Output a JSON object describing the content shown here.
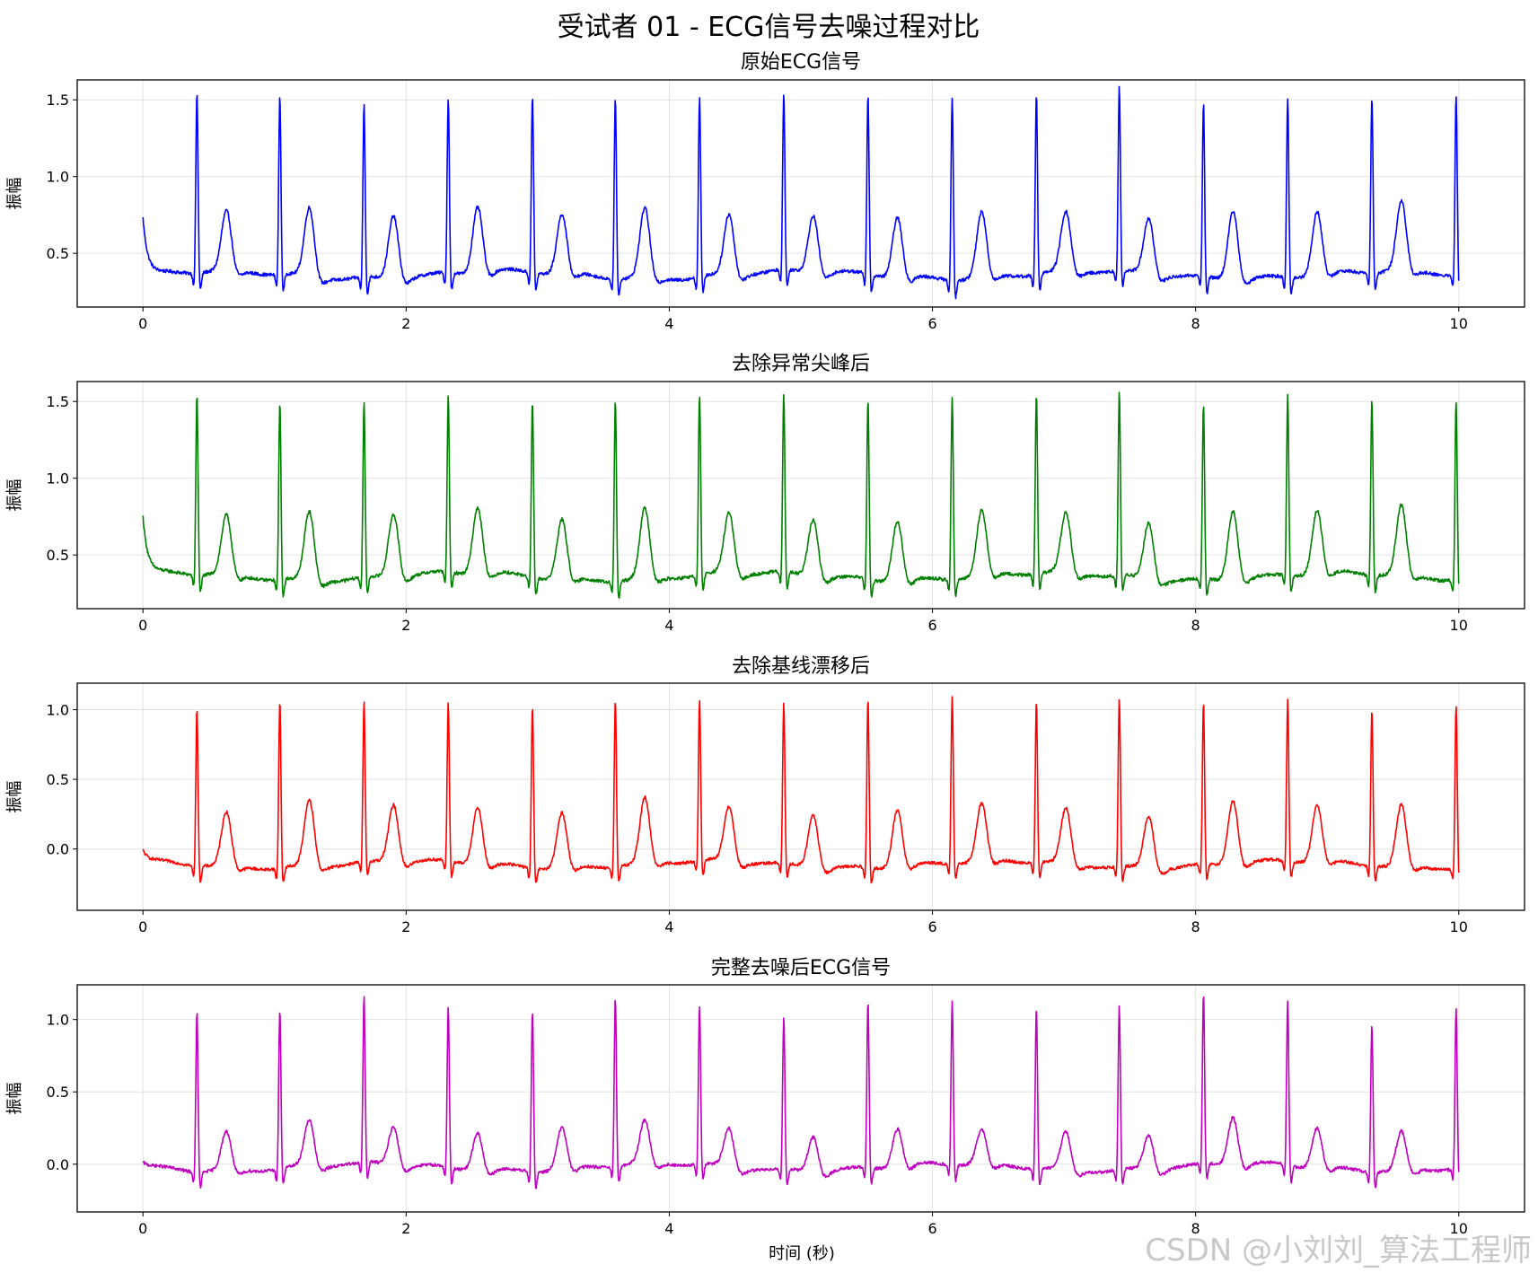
{
  "chart_data": {
    "type": "line",
    "title": "受试者 01 - ECG信号去噪过程对比",
    "xlabel": "时间 (秒)",
    "x_ticks": [
      "0",
      "2",
      "4",
      "6",
      "8",
      "10"
    ],
    "x_range": [
      -0.5,
      10.5
    ],
    "grid": true,
    "watermark": "CSDN @小刘刘_算法工程师",
    "beat_times": [
      0.41,
      1.04,
      1.68,
      2.32,
      2.96,
      3.59,
      4.23,
      4.87,
      5.51,
      6.15,
      6.79,
      7.42,
      8.06,
      8.7,
      9.34,
      9.98
    ],
    "panels": [
      {
        "title": "原始ECG信号",
        "ylabel": "振幅",
        "color": "#0000ff",
        "y_ticks": [
          "0.5",
          "1.0",
          "1.5"
        ],
        "y_tick_values": [
          0.5,
          1.0,
          1.5
        ],
        "y_range": [
          0.15,
          1.63
        ],
        "baseline_start": 0.73,
        "baseline": 0.36,
        "r_peaks": [
          1.55,
          1.53,
          1.5,
          1.51,
          1.52,
          1.55,
          1.54,
          1.52,
          1.53,
          1.56,
          1.54,
          1.57,
          1.5,
          1.54,
          1.52,
          1.53
        ],
        "t_peaks": [
          0.75,
          0.81,
          0.78,
          0.8,
          0.75,
          0.82,
          0.76,
          0.74,
          0.76,
          0.79,
          0.75,
          0.73,
          0.82,
          0.78,
          0.82,
          0.79
        ]
      },
      {
        "title": "去除异常尖峰后",
        "ylabel": "振幅",
        "color": "#008000",
        "y_ticks": [
          "0.5",
          "1.0",
          "1.5"
        ],
        "y_tick_values": [
          0.5,
          1.0,
          1.5
        ],
        "y_range": [
          0.15,
          1.63
        ],
        "baseline_start": 0.73,
        "baseline": 0.36,
        "r_peaks": [
          1.55,
          1.53,
          1.5,
          1.51,
          1.52,
          1.55,
          1.54,
          1.52,
          1.53,
          1.56,
          1.54,
          1.57,
          1.5,
          1.54,
          1.52,
          1.53
        ],
        "t_peaks": [
          0.75,
          0.81,
          0.78,
          0.8,
          0.75,
          0.82,
          0.76,
          0.74,
          0.76,
          0.79,
          0.75,
          0.73,
          0.82,
          0.78,
          0.82,
          0.79
        ]
      },
      {
        "title": "去除基线漂移后",
        "ylabel": "振幅",
        "color": "#ff0000",
        "y_ticks": [
          "0.0",
          "0.5",
          "1.0"
        ],
        "y_tick_values": [
          0.0,
          0.5,
          1.0
        ],
        "y_range": [
          -0.44,
          1.19
        ],
        "baseline_start": -0.03,
        "baseline": -0.11,
        "r_peaks": [
          1.02,
          1.1,
          1.05,
          1.03,
          1.06,
          1.09,
          1.05,
          1.05,
          1.1,
          1.1,
          1.05,
          1.11,
          1.05,
          1.06,
          1.03,
          1.07
        ],
        "t_peaks": [
          0.28,
          0.37,
          0.31,
          0.31,
          0.29,
          0.36,
          0.29,
          0.28,
          0.31,
          0.31,
          0.29,
          0.27,
          0.36,
          0.3,
          0.34,
          0.3
        ]
      },
      {
        "title": "完整去噪后ECG信号",
        "ylabel": "振幅",
        "color": "#bf00bf",
        "y_ticks": [
          "0.0",
          "0.5",
          "1.0"
        ],
        "y_tick_values": [
          0.0,
          0.5,
          1.0
        ],
        "y_range": [
          -0.33,
          1.24
        ],
        "baseline_start": 0.01,
        "baseline": -0.02,
        "r_peaks": [
          1.1,
          1.09,
          1.13,
          1.09,
          1.09,
          1.15,
          1.09,
          1.04,
          1.13,
          1.12,
          1.1,
          1.12,
          1.17,
          1.13,
          1.01,
          1.09
        ],
        "t_peaks": [
          0.25,
          0.3,
          0.25,
          0.25,
          0.27,
          0.28,
          0.25,
          0.23,
          0.25,
          0.22,
          0.24,
          0.22,
          0.32,
          0.26,
          0.25,
          0.26
        ]
      }
    ]
  }
}
